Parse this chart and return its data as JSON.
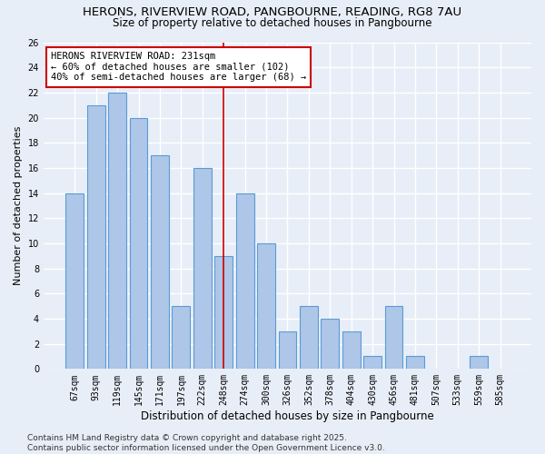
{
  "title": "HERONS, RIVERVIEW ROAD, PANGBOURNE, READING, RG8 7AU",
  "subtitle": "Size of property relative to detached houses in Pangbourne",
  "xlabel": "Distribution of detached houses by size in Pangbourne",
  "ylabel": "Number of detached properties",
  "categories": [
    "67sqm",
    "93sqm",
    "119sqm",
    "145sqm",
    "171sqm",
    "197sqm",
    "222sqm",
    "248sqm",
    "274sqm",
    "300sqm",
    "326sqm",
    "352sqm",
    "378sqm",
    "404sqm",
    "430sqm",
    "456sqm",
    "481sqm",
    "507sqm",
    "533sqm",
    "559sqm",
    "585sqm"
  ],
  "values": [
    14,
    21,
    22,
    20,
    17,
    5,
    16,
    9,
    14,
    10,
    3,
    5,
    4,
    3,
    1,
    5,
    1,
    0,
    0,
    1,
    0
  ],
  "bar_color": "#aec6e8",
  "bar_edge_color": "#5b9bd5",
  "background_color": "#e8eef7",
  "grid_color": "#ffffff",
  "annotation_box_text": "HERONS RIVERVIEW ROAD: 231sqm\n← 60% of detached houses are smaller (102)\n40% of semi-detached houses are larger (68) →",
  "annotation_box_color": "#cc0000",
  "vline_x": 7.0,
  "vline_color": "#cc0000",
  "ylim": [
    0,
    26
  ],
  "yticks": [
    0,
    2,
    4,
    6,
    8,
    10,
    12,
    14,
    16,
    18,
    20,
    22,
    24,
    26
  ],
  "footer_text": "Contains HM Land Registry data © Crown copyright and database right 2025.\nContains public sector information licensed under the Open Government Licence v3.0.",
  "title_fontsize": 9.5,
  "subtitle_fontsize": 8.5,
  "ylabel_fontsize": 8,
  "xlabel_fontsize": 8.5,
  "annotation_fontsize": 7.5,
  "tick_fontsize": 7,
  "footer_fontsize": 6.5
}
